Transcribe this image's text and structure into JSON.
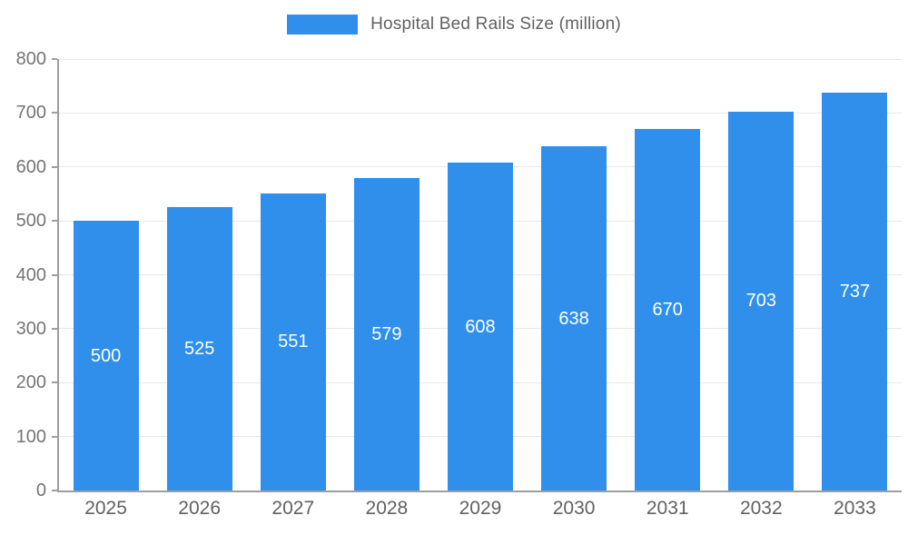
{
  "chart_data": {
    "type": "bar",
    "title": "Hospital Bed Rails Size (million)",
    "categories": [
      "2025",
      "2026",
      "2027",
      "2028",
      "2029",
      "2030",
      "2031",
      "2032",
      "2033"
    ],
    "values": [
      500,
      525,
      551,
      579,
      608,
      638,
      670,
      703,
      737
    ],
    "xlabel": "",
    "ylabel": "",
    "ylim": [
      0,
      800
    ],
    "ytick_step": 100,
    "grid": true,
    "legend_position": "top",
    "bar_color": "#2F8FEB",
    "bar_label_color": "#ffffff",
    "axis_line_color": "#9e9e9e",
    "grid_color": "#e8e8e8",
    "tick_label_color": "#757575"
  }
}
